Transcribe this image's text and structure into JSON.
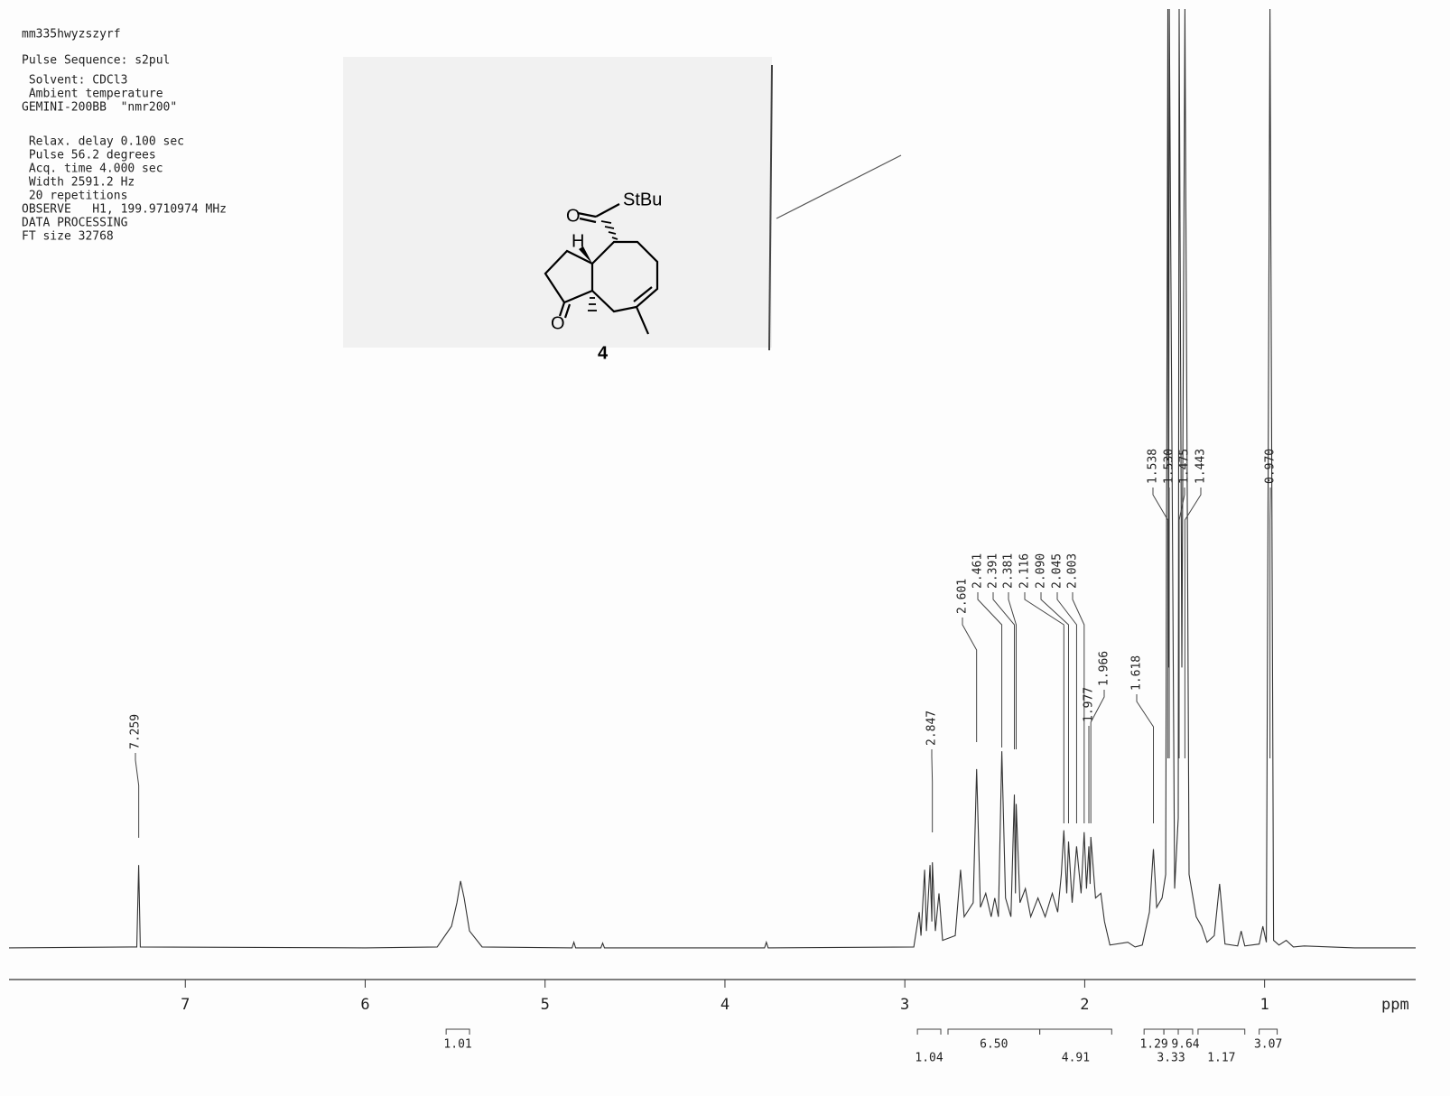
{
  "header": {
    "lines": [
      "mm335hwyzszyrf",
      "Pulse Sequence: s2pul",
      " Solvent: CDCl3",
      " Ambient temperature",
      "GEMINI-200BB  \"nmr200\"",
      " Relax. delay 0.100 sec",
      " Pulse 56.2 degrees",
      " Acq. time 4.000 sec",
      " Width 2591.2 Hz",
      " 20 repetitions",
      "OBSERVE   H1, 199.9710974 MHz",
      "DATA PROCESSING",
      "FT size 32768"
    ]
  },
  "structure": {
    "substituent": "StBu",
    "h_label": "H",
    "oxygens": [
      "O",
      "O"
    ],
    "compound_number": "4"
  },
  "chart_data": {
    "type": "line",
    "xlabel": "ppm",
    "color": "#333333",
    "xlim": [
      7.98,
      0.16
    ],
    "ylim": [
      0,
      100
    ],
    "xticks": [
      7,
      6,
      5,
      4,
      3,
      2,
      1
    ],
    "x": [
      7.98,
      7.3,
      7.27,
      7.259,
      7.25,
      6.0,
      5.6,
      5.52,
      5.49,
      5.47,
      5.45,
      5.42,
      5.35,
      4.85,
      4.84,
      4.83,
      4.69,
      4.68,
      4.67,
      3.78,
      3.77,
      3.76,
      2.95,
      2.92,
      2.91,
      2.89,
      2.88,
      2.86,
      2.85,
      2.847,
      2.83,
      2.81,
      2.79,
      2.72,
      2.69,
      2.67,
      2.62,
      2.601,
      2.58,
      2.55,
      2.52,
      2.5,
      2.48,
      2.461,
      2.44,
      2.41,
      2.391,
      2.385,
      2.381,
      2.36,
      2.33,
      2.3,
      2.26,
      2.22,
      2.18,
      2.15,
      2.13,
      2.116,
      2.1,
      2.09,
      2.07,
      2.045,
      2.02,
      2.003,
      1.99,
      1.977,
      1.97,
      1.966,
      1.94,
      1.91,
      1.89,
      1.86,
      1.76,
      1.72,
      1.68,
      1.64,
      1.618,
      1.6,
      1.57,
      1.55,
      1.538,
      1.534,
      1.53,
      1.5,
      1.48,
      1.475,
      1.46,
      1.443,
      1.42,
      1.38,
      1.35,
      1.32,
      1.28,
      1.25,
      1.22,
      1.15,
      1.13,
      1.11,
      1.03,
      1.01,
      0.99,
      0.97,
      0.95,
      0.92,
      0.88,
      0.84,
      0.78,
      0.5,
      0.16
    ],
    "values": [
      0.2,
      0.3,
      0.3,
      9.0,
      0.3,
      0.2,
      0.3,
      2.5,
      5.0,
      7.3,
      5.5,
      2.0,
      0.3,
      0.2,
      0.8,
      0.2,
      0.2,
      0.7,
      0.2,
      0.2,
      0.8,
      0.2,
      0.3,
      4.0,
      1.5,
      8.5,
      2.0,
      9.0,
      3.0,
      9.3,
      2.0,
      6.0,
      1.0,
      1.5,
      8.5,
      3.5,
      5.0,
      19.2,
      4.5,
      6.0,
      3.5,
      5.5,
      3.5,
      21.1,
      5.5,
      3.5,
      16.5,
      6.0,
      15.5,
      5.0,
      6.5,
      3.5,
      5.5,
      3.5,
      6.0,
      4.0,
      8.0,
      12.7,
      6.0,
      11.5,
      5.0,
      11.0,
      6.0,
      12.5,
      6.5,
      11.0,
      7.0,
      12.0,
      5.5,
      6.0,
      3.0,
      0.5,
      0.8,
      0.3,
      0.5,
      4.0,
      10.7,
      4.5,
      5.5,
      8.0,
      100,
      30,
      100,
      6.5,
      14,
      100,
      30,
      100,
      8.0,
      3.5,
      2.5,
      0.8,
      1.5,
      7.0,
      0.6,
      0.4,
      2.0,
      0.4,
      0.6,
      2.5,
      0.8,
      100,
      1.0,
      0.5,
      1.0,
      0.3,
      0.4,
      0.2,
      0.2
    ],
    "peak_labels": [
      7.259,
      2.847,
      2.601,
      2.461,
      2.391,
      2.381,
      2.116,
      {
        "value": 2.09,
        "label": "2.090"
      },
      2.045,
      2.003,
      1.977,
      1.966,
      1.618,
      1.538,
      {
        "value": 1.53,
        "label": "1.530"
      },
      1.475,
      1.443,
      {
        "value": 0.97,
        "label": "0.970"
      }
    ],
    "integrals": [
      {
        "value": 1.01,
        "range": [
          5.55,
          5.42
        ]
      },
      {
        "value": 1.04,
        "range": [
          2.93,
          2.8
        ]
      },
      {
        "value": 6.5,
        "label": "6.50",
        "range": [
          2.76,
          2.25
        ]
      },
      {
        "value": 4.91,
        "range": [
          2.25,
          1.85
        ]
      },
      {
        "value": 1.29,
        "range": [
          1.67,
          1.56
        ]
      },
      {
        "value": 3.33,
        "range": [
          1.56,
          1.48
        ]
      },
      {
        "value": 9.64,
        "range": [
          1.48,
          1.4
        ]
      },
      {
        "value": 1.17,
        "range": [
          1.37,
          1.11
        ]
      },
      {
        "value": 3.07,
        "range": [
          1.03,
          0.93
        ]
      }
    ]
  }
}
